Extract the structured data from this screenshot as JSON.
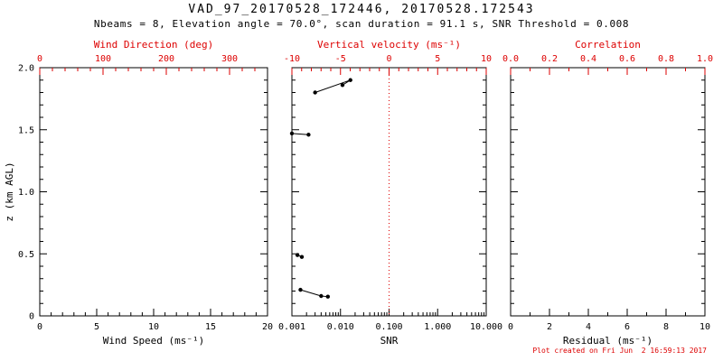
{
  "header": {
    "title": "VAD_97_20170528_172446, 20170528.172543",
    "subtitle": "Nbeams = 8, Elevation angle = 70.0°, scan duration = 91.1 s, SNR Threshold = 0.008"
  },
  "footer": {
    "created": "Plot created on Fri Jun  2 16:59:13 2017"
  },
  "colors": {
    "foreground": "#000000",
    "secondary": "#dd0000",
    "background": "#ffffff"
  },
  "chart_data": [
    {
      "type": "line",
      "name": "wind-speed-direction",
      "x_bottom": {
        "title": "Wind Speed (ms⁻¹)",
        "scale": "linear",
        "min": 0,
        "max": 20,
        "minor": 1,
        "ticks": [
          [
            "0",
            0
          ],
          [
            "5",
            5
          ],
          [
            "10",
            10
          ],
          [
            "15",
            15
          ],
          [
            "20",
            20
          ]
        ]
      },
      "x_top": {
        "title": "Wind Direction (deg)",
        "scale": "linear",
        "min": 0,
        "max": 360,
        "minor": 20,
        "ticks": [
          [
            "0",
            0
          ],
          [
            "100",
            100
          ],
          [
            "200",
            200
          ],
          [
            "300",
            300
          ]
        ]
      },
      "y": {
        "title": "z (km AGL)",
        "min": 0,
        "max": 2,
        "minor": 0.1,
        "labels": true,
        "ticks": [
          [
            "0",
            0
          ],
          [
            "0.5",
            0.5
          ],
          [
            "1.0",
            1.0
          ],
          [
            "1.5",
            1.5
          ],
          [
            "2.0",
            2.0
          ]
        ]
      },
      "series": []
    },
    {
      "type": "line",
      "name": "snr-vertical-velocity",
      "x_bottom": {
        "title": "SNR",
        "scale": "log",
        "min": 0.001,
        "max": 10,
        "ticks": [
          [
            "0.001",
            0.001
          ],
          [
            "0.010",
            0.01
          ],
          [
            "0.100",
            0.1
          ],
          [
            "1.000",
            1
          ],
          [
            "10.000",
            10
          ]
        ]
      },
      "x_top": {
        "title": "Vertical velocity (ms⁻¹)",
        "scale": "linear",
        "min": -10,
        "max": 10,
        "minor": 1,
        "ticks": [
          [
            "-10",
            -10
          ],
          [
            "-5",
            -5
          ],
          [
            "0",
            0
          ],
          [
            "5",
            5
          ],
          [
            "10",
            10
          ]
        ]
      },
      "y": {
        "title": "",
        "min": 0,
        "max": 2,
        "minor": 0.1,
        "labels": false,
        "ticks": [
          [
            "0",
            0
          ],
          [
            "0.5",
            0.5
          ],
          [
            "1.0",
            1.0
          ],
          [
            "1.5",
            1.5
          ],
          [
            "2.0",
            2.0
          ]
        ]
      },
      "vline": {
        "top_value": 0,
        "style": "dotted"
      },
      "series": [
        {
          "name": "snr-profile",
          "color": "#000000",
          "marker": "circle",
          "segments": [
            [
              [
                0.003,
                1.8
              ],
              [
                0.016,
                1.9
              ],
              [
                0.011,
                1.86
              ]
            ],
            [
              [
                0.001,
                1.47
              ],
              [
                0.0022,
                1.46
              ]
            ],
            [
              [
                0.0013,
                0.49
              ],
              [
                0.0016,
                0.475
              ]
            ],
            [
              [
                0.0015,
                0.21
              ],
              [
                0.004,
                0.16
              ],
              [
                0.0055,
                0.155
              ]
            ]
          ]
        }
      ]
    },
    {
      "type": "line",
      "name": "residual-correlation",
      "x_bottom": {
        "title": "Residual (ms⁻¹)",
        "scale": "linear",
        "min": 0,
        "max": 10,
        "minor": 1,
        "ticks": [
          [
            "0",
            0
          ],
          [
            "2",
            2
          ],
          [
            "4",
            4
          ],
          [
            "6",
            6
          ],
          [
            "8",
            8
          ],
          [
            "10",
            10
          ]
        ]
      },
      "x_top": {
        "title": "Correlation",
        "scale": "linear",
        "min": 0,
        "max": 1,
        "minor": 0.1,
        "ticks": [
          [
            "0.0",
            0
          ],
          [
            "0.2",
            0.2
          ],
          [
            "0.4",
            0.4
          ],
          [
            "0.6",
            0.6
          ],
          [
            "0.8",
            0.8
          ],
          [
            "1.0",
            1.0
          ]
        ]
      },
      "y": {
        "title": "",
        "min": 0,
        "max": 2,
        "minor": 0.1,
        "labels": false,
        "ticks": [
          [
            "0",
            0
          ],
          [
            "0.5",
            0.5
          ],
          [
            "1.0",
            1.0
          ],
          [
            "1.5",
            1.5
          ],
          [
            "2.0",
            2.0
          ]
        ]
      },
      "series": []
    }
  ]
}
